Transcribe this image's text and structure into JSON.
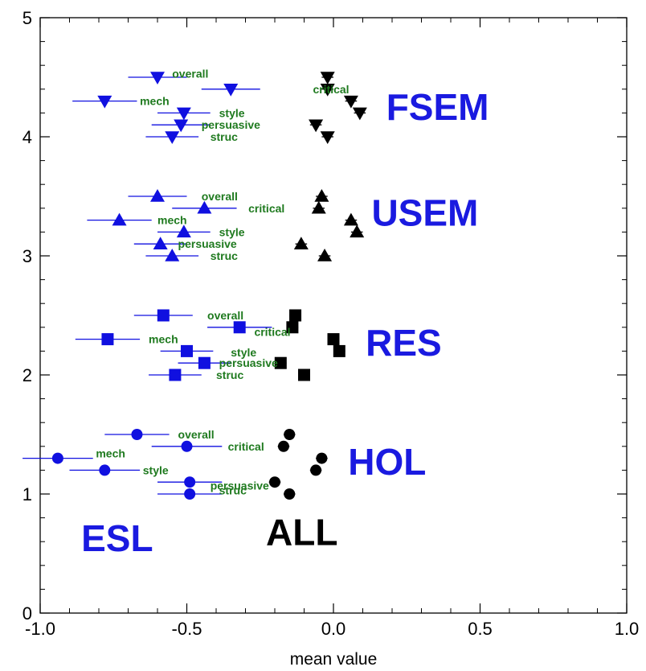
{
  "chart_data": {
    "type": "scatter",
    "title": "",
    "xlabel": "mean value",
    "ylabel": "",
    "xlim": [
      -1.0,
      1.0
    ],
    "ylim": [
      0,
      5
    ],
    "x_ticks": [
      "-1.0",
      "-0.5",
      "0.0",
      "0.5",
      "1.0"
    ],
    "y_ticks": [
      "0",
      "1",
      "2",
      "3",
      "4",
      "5"
    ],
    "grid": false,
    "colors": {
      "esl": "#1010e0",
      "all": "#000000",
      "point_label": "#1f7a1f",
      "group_label": "#1a1ae0"
    },
    "annotations": [
      {
        "text": "FSEM",
        "x": 0.18,
        "y": 4.25,
        "color": "#1a1ae0"
      },
      {
        "text": "USEM",
        "x": 0.13,
        "y": 3.36,
        "color": "#1a1ae0"
      },
      {
        "text": "RES",
        "x": 0.11,
        "y": 2.27,
        "color": "#1a1ae0"
      },
      {
        "text": "HOL",
        "x": 0.05,
        "y": 1.27,
        "color": "#1a1ae0"
      },
      {
        "text": "ESL",
        "x": -0.86,
        "y": 0.63,
        "color": "#1a1ae0"
      },
      {
        "text": "ALL",
        "x": -0.23,
        "y": 0.68,
        "color": "#000000"
      }
    ],
    "series": [
      {
        "name": "ESL",
        "color": "#1010e0",
        "groups": [
          {
            "group": "FSEM",
            "marker": "triangle-down",
            "points": [
              {
                "label": "overall",
                "x": -0.6,
                "xerr": 0.1,
                "y": 4.5,
                "label_dx": 0.05,
                "label_dy": 0.03
              },
              {
                "label": "critical",
                "x": -0.35,
                "xerr": 0.1,
                "y": 4.4,
                "label_dx": 0.28,
                "label_dy": 0.0
              },
              {
                "label": "mech",
                "x": -0.78,
                "xerr": 0.11,
                "y": 4.3,
                "label_dx": 0.12,
                "label_dy": 0.0
              },
              {
                "label": "style",
                "x": -0.51,
                "xerr": 0.09,
                "y": 4.2,
                "label_dx": 0.12,
                "label_dy": 0.0
              },
              {
                "label": "persuasive",
                "x": -0.52,
                "xerr": 0.1,
                "y": 4.1,
                "label_dx": 0.07,
                "label_dy": 0.0
              },
              {
                "label": "struc",
                "x": -0.55,
                "xerr": 0.09,
                "y": 4.0,
                "label_dx": 0.13,
                "label_dy": 0.0
              }
            ]
          },
          {
            "group": "USEM",
            "marker": "triangle-up",
            "points": [
              {
                "label": "overall",
                "x": -0.6,
                "xerr": 0.1,
                "y": 3.5,
                "label_dx": 0.15,
                "label_dy": 0.0
              },
              {
                "label": "critical",
                "x": -0.44,
                "xerr": 0.11,
                "y": 3.4,
                "label_dx": 0.15,
                "label_dy": 0.0
              },
              {
                "label": "mech",
                "x": -0.73,
                "xerr": 0.11,
                "y": 3.3,
                "label_dx": 0.13,
                "label_dy": 0.0
              },
              {
                "label": "style",
                "x": -0.51,
                "xerr": 0.09,
                "y": 3.2,
                "label_dx": 0.12,
                "label_dy": 0.0
              },
              {
                "label": "persuasive",
                "x": -0.59,
                "xerr": 0.09,
                "y": 3.1,
                "label_dx": 0.06,
                "label_dy": 0.0
              },
              {
                "label": "struc",
                "x": -0.55,
                "xerr": 0.09,
                "y": 3.0,
                "label_dx": 0.13,
                "label_dy": 0.0
              }
            ]
          },
          {
            "group": "RES",
            "marker": "square",
            "points": [
              {
                "label": "overall",
                "x": -0.58,
                "xerr": 0.1,
                "y": 2.5,
                "label_dx": 0.15,
                "label_dy": 0.0
              },
              {
                "label": "critical",
                "x": -0.32,
                "xerr": 0.11,
                "y": 2.4,
                "label_dx": 0.05,
                "label_dy": -0.04
              },
              {
                "label": "mech",
                "x": -0.77,
                "xerr": 0.11,
                "y": 2.3,
                "label_dx": 0.14,
                "label_dy": 0.0
              },
              {
                "label": "style",
                "x": -0.5,
                "xerr": 0.09,
                "y": 2.2,
                "label_dx": 0.15,
                "label_dy": -0.01
              },
              {
                "label": "persuasive",
                "x": -0.44,
                "xerr": 0.09,
                "y": 2.1,
                "label_dx": 0.05,
                "label_dy": 0.0
              },
              {
                "label": "struc",
                "x": -0.54,
                "xerr": 0.09,
                "y": 2.0,
                "label_dx": 0.14,
                "label_dy": 0.0
              }
            ]
          },
          {
            "group": "HOL",
            "marker": "circle",
            "points": [
              {
                "label": "overall",
                "x": -0.67,
                "xerr": 0.11,
                "y": 1.5,
                "label_dx": 0.14,
                "label_dy": 0.0
              },
              {
                "label": "critical",
                "x": -0.5,
                "xerr": 0.12,
                "y": 1.4,
                "label_dx": 0.14,
                "label_dy": 0.0
              },
              {
                "label": "mech",
                "x": -0.94,
                "xerr": 0.12,
                "y": 1.3,
                "label_dx": 0.13,
                "label_dy": 0.04
              },
              {
                "label": "style",
                "x": -0.78,
                "xerr": 0.12,
                "y": 1.2,
                "label_dx": 0.13,
                "label_dy": 0.0
              },
              {
                "label": "persuasive",
                "x": -0.49,
                "xerr": 0.11,
                "y": 1.1,
                "label_dx": 0.07,
                "label_dy": -0.03
              },
              {
                "label": "struc",
                "x": -0.49,
                "xerr": 0.11,
                "y": 1.0,
                "label_dx": 0.1,
                "label_dy": 0.03
              }
            ]
          }
        ]
      },
      {
        "name": "ALL",
        "color": "#000000",
        "groups": [
          {
            "group": "FSEM",
            "marker": "triangle-down",
            "points": [
              {
                "label": "overall",
                "x": -0.02,
                "xerr": 0.02,
                "y": 4.5
              },
              {
                "label": "critical",
                "x": -0.02,
                "xerr": 0.02,
                "y": 4.4
              },
              {
                "label": "mech",
                "x": 0.06,
                "xerr": 0.02,
                "y": 4.3
              },
              {
                "label": "style",
                "x": 0.09,
                "xerr": 0.02,
                "y": 4.2
              },
              {
                "label": "persuasive",
                "x": -0.06,
                "xerr": 0.02,
                "y": 4.1
              },
              {
                "label": "struc",
                "x": -0.02,
                "xerr": 0.02,
                "y": 4.0
              }
            ]
          },
          {
            "group": "USEM",
            "marker": "triangle-up",
            "points": [
              {
                "label": "overall",
                "x": -0.04,
                "xerr": 0.02,
                "y": 3.5
              },
              {
                "label": "critical",
                "x": -0.05,
                "xerr": 0.02,
                "y": 3.4
              },
              {
                "label": "mech",
                "x": 0.06,
                "xerr": 0.02,
                "y": 3.3
              },
              {
                "label": "style",
                "x": 0.08,
                "xerr": 0.02,
                "y": 3.2
              },
              {
                "label": "persuasive",
                "x": -0.11,
                "xerr": 0.02,
                "y": 3.1
              },
              {
                "label": "struc",
                "x": -0.03,
                "xerr": 0.02,
                "y": 3.0
              }
            ]
          },
          {
            "group": "RES",
            "marker": "square",
            "points": [
              {
                "label": "overall",
                "x": -0.13,
                "xerr": 0.02,
                "y": 2.5
              },
              {
                "label": "critical",
                "x": -0.14,
                "xerr": 0.02,
                "y": 2.4
              },
              {
                "label": "mech",
                "x": 0.0,
                "xerr": 0.02,
                "y": 2.3
              },
              {
                "label": "style",
                "x": 0.02,
                "xerr": 0.02,
                "y": 2.2
              },
              {
                "label": "persuasive",
                "x": -0.18,
                "xerr": 0.02,
                "y": 2.1
              },
              {
                "label": "struc",
                "x": -0.1,
                "xerr": 0.02,
                "y": 2.0
              }
            ]
          },
          {
            "group": "HOL",
            "marker": "circle",
            "points": [
              {
                "label": "overall",
                "x": -0.15,
                "xerr": 0.02,
                "y": 1.5
              },
              {
                "label": "critical",
                "x": -0.17,
                "xerr": 0.02,
                "y": 1.4
              },
              {
                "label": "mech",
                "x": -0.04,
                "xerr": 0.02,
                "y": 1.3
              },
              {
                "label": "style",
                "x": -0.06,
                "xerr": 0.02,
                "y": 1.2
              },
              {
                "label": "persuasive",
                "x": -0.2,
                "xerr": 0.02,
                "y": 1.1
              },
              {
                "label": "struc",
                "x": -0.15,
                "xerr": 0.02,
                "y": 1.0
              }
            ]
          }
        ]
      }
    ]
  }
}
